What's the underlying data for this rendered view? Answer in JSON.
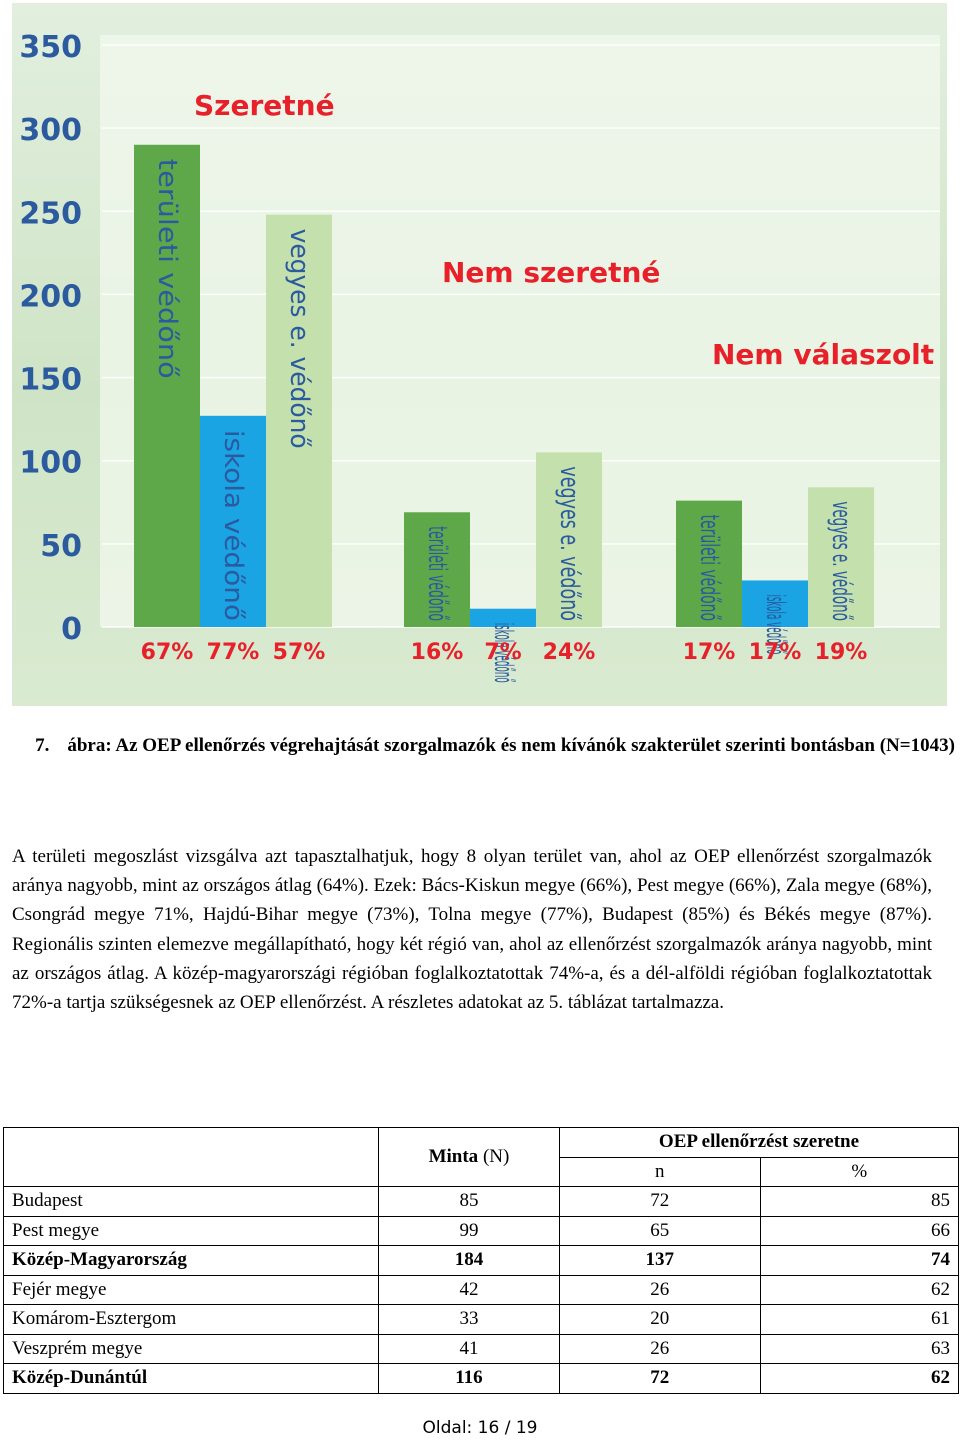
{
  "chart_data": {
    "type": "bar",
    "yticks": [
      "350",
      "300",
      "250",
      "200",
      "150",
      "100",
      "50",
      "0"
    ],
    "ylim": [
      0,
      350
    ],
    "groups": [
      {
        "label": "Szeretné",
        "bars": [
          {
            "name": "területi védőnő",
            "value": 290,
            "percent": "67%",
            "color": "#5fa84a"
          },
          {
            "name": "iskola védőnő",
            "value": 127,
            "percent": "77%",
            "color": "#1aa4e4"
          },
          {
            "name": "vegyes e. védőnő",
            "value": 248,
            "percent": "57%",
            "color": "#c3e0ad"
          }
        ]
      },
      {
        "label": "Nem szeretné",
        "bars": [
          {
            "name": "területi védőnő",
            "value": 69,
            "percent": "16%",
            "color": "#5fa84a"
          },
          {
            "name": "iskola védőnő",
            "value": 11,
            "percent": "7%",
            "color": "#1aa4e4"
          },
          {
            "name": "vegyes e. védőnő",
            "value": 105,
            "percent": "24%",
            "color": "#c3e0ad"
          }
        ]
      },
      {
        "label": "Nem válaszolt",
        "bars": [
          {
            "name": "területi védőnő",
            "value": 76,
            "percent": "17%",
            "color": "#5fa84a"
          },
          {
            "name": "iskola védőnő",
            "value": 28,
            "percent": "17%",
            "color": "#1aa4e4"
          },
          {
            "name": "vegyes e. védőnő",
            "value": 84,
            "percent": "19%",
            "color": "#c3e0ad"
          }
        ]
      }
    ],
    "colors": {
      "group_label": "#e8202a",
      "percent": "#e8202a",
      "tick": "#2b5a9e"
    }
  },
  "caption": {
    "number": "7.",
    "text": "ábra: Az OEP ellenőrzés végrehajtását szorgalmazók és nem kívánók szakterület szerinti bontásban (N=1043)"
  },
  "paragraph": "A területi megoszlást vizsgálva azt tapasztalhatjuk, hogy 8 olyan terület van, ahol az OEP ellenőrzést szorgalmazók aránya nagyobb, mint az országos átlag (64%). Ezek: Bács-Kiskun megye (66%), Pest megye (66%), Zala megye (68%), Csongrád megye 71%, Hajdú-Bihar megye (73%), Tolna megye (77%), Budapest (85%) és Békés megye (87%). Regionális szinten elemezve megállapítható, hogy két régió van, ahol az ellenőrzést szorgalmazók aránya nagyobb, mint az országos átlag. A közép-magyarországi régióban foglalkoztatottak 74%-a, és a dél-alföldi régióban foglalkoztatottak 72%-a tartja szükségesnek az OEP ellenőrzést. A részletes adatokat az 5. táblázat tartalmazza.",
  "table": {
    "head_minta": "Minta",
    "head_minta_n": "(N)",
    "head_oep": "OEP ellenőrzést szeretne",
    "head_n": "n",
    "head_pct": "%",
    "rows": [
      {
        "region": "Budapest",
        "minta": "85",
        "n": "72",
        "pct": "85",
        "bold": false
      },
      {
        "region": "Pest megye",
        "minta": "99",
        "n": "65",
        "pct": "66",
        "bold": false
      },
      {
        "region": "Közép-Magyarország",
        "minta": "184",
        "n": "137",
        "pct": "74",
        "bold": true
      },
      {
        "region": "Fejér megye",
        "minta": "42",
        "n": "26",
        "pct": "62",
        "bold": false
      },
      {
        "region": "Komárom-Esztergom",
        "minta": "33",
        "n": "20",
        "pct": "61",
        "bold": false
      },
      {
        "region": "Veszprém megye",
        "minta": "41",
        "n": "26",
        "pct": "63",
        "bold": false
      },
      {
        "region": "Közép-Dunántúl",
        "minta": "116",
        "n": "72",
        "pct": "62",
        "bold": true
      }
    ]
  },
  "footer": {
    "label": "Oldal:",
    "page": "16",
    "sep": "/",
    "total": "19"
  }
}
